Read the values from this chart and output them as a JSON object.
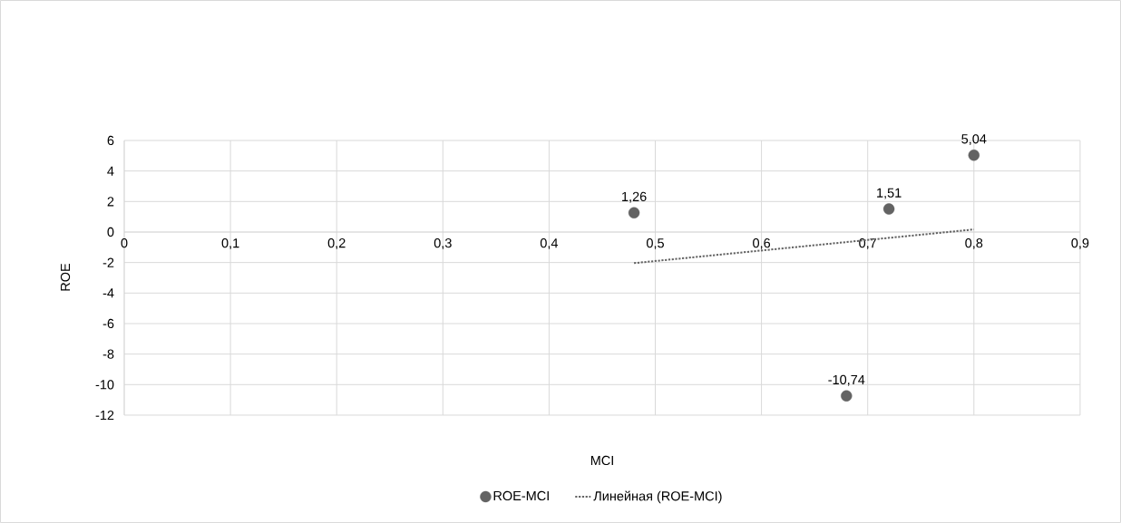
{
  "chart_data": {
    "type": "scatter",
    "xlabel": "MCI",
    "ylabel": "ROE",
    "series": [
      {
        "name": "ROE-MCI",
        "color": "#636363",
        "x": [
          0.48,
          0.72,
          0.8,
          0.68
        ],
        "values": [
          1.26,
          1.51,
          5.04,
          -10.74
        ],
        "value_labels": [
          "1,26",
          "1,51",
          "5,04",
          "-10,74"
        ],
        "marker": "circle"
      },
      {
        "name": "Линейная (ROE-MCI)",
        "type": "line",
        "color": "#636363",
        "x": [
          0.48,
          0.8
        ],
        "values": [
          -2.04,
          0.17
        ],
        "line_style": "dotted",
        "marker": "none"
      }
    ],
    "xlim": [
      0,
      0.9
    ],
    "xticks": [
      0,
      {
        "value": 0.1,
        "label": "0,1"
      },
      {
        "value": 0.2,
        "label": "0,2"
      },
      {
        "value": 0.3,
        "label": "0,3"
      },
      {
        "value": 0.4,
        "label": "0,4"
      },
      {
        "value": 0.5,
        "label": "0,5"
      },
      {
        "value": 0.6,
        "label": "0,6"
      },
      {
        "value": 0.7,
        "label": "0,7"
      },
      {
        "value": 0.8,
        "label": "0,8"
      },
      {
        "value": 0.9,
        "label": "0,9"
      }
    ],
    "ylim": [
      -12,
      6
    ],
    "yticks": [
      -12,
      -10,
      -8,
      -6,
      -4,
      -2,
      0,
      2,
      4,
      6
    ],
    "grid": true,
    "legend": "bottom"
  }
}
